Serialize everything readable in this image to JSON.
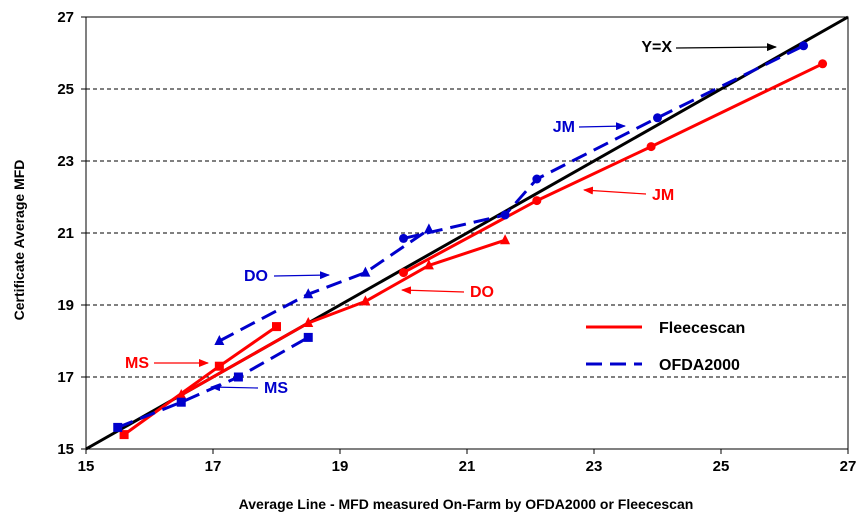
{
  "chart_data": {
    "type": "line",
    "title": "",
    "xlabel": "Average Line - MFD measured On-Farm by OFDA2000 or Fleecescan",
    "ylabel": "Certificate Average MFD",
    "xlim": [
      15,
      27
    ],
    "ylim": [
      15,
      27
    ],
    "x_ticks": [
      "15",
      "17",
      "19",
      "21",
      "23",
      "25",
      "27"
    ],
    "y_ticks": [
      "15",
      "17",
      "19",
      "21",
      "23",
      "25",
      "27"
    ],
    "grid": "horizontal dashed",
    "legend_position": "right-center",
    "colors": {
      "fleecescan": "#ff0000",
      "ofda2000": "#0000cc",
      "identity": "#000000"
    },
    "series": [
      {
        "name": "Fleecescan",
        "style": "solid",
        "segments": [
          {
            "group": "MS",
            "marker": "square",
            "points": [
              [
                15.6,
                15.4
              ],
              [
                17.1,
                17.3
              ],
              [
                18.0,
                18.4
              ]
            ]
          },
          {
            "group": "DO",
            "marker": "triangle",
            "points": [
              [
                16.5,
                16.5
              ],
              [
                18.5,
                18.5
              ],
              [
                19.4,
                19.1
              ],
              [
                20.4,
                20.1
              ],
              [
                21.6,
                20.8
              ]
            ]
          },
          {
            "group": "JM",
            "marker": "circle",
            "points": [
              [
                20.0,
                19.9
              ],
              [
                22.1,
                21.9
              ],
              [
                23.9,
                23.4
              ],
              [
                26.6,
                25.7
              ]
            ]
          }
        ]
      },
      {
        "name": "OFDA2000",
        "style": "dashed",
        "segments": [
          {
            "group": "MS",
            "marker": "square",
            "points": [
              [
                15.5,
                15.6
              ],
              [
                16.5,
                16.3
              ],
              [
                17.4,
                17.0
              ],
              [
                18.5,
                18.1
              ]
            ]
          },
          {
            "group": "DO",
            "marker": "triangle",
            "points": [
              [
                17.1,
                18.0
              ],
              [
                18.5,
                19.3
              ],
              [
                19.4,
                19.9
              ],
              [
                20.4,
                21.1
              ]
            ]
          },
          {
            "group": "JM",
            "marker": "circle",
            "points": [
              [
                20.0,
                20.85
              ],
              [
                21.6,
                21.5
              ],
              [
                22.1,
                22.5
              ],
              [
                24.0,
                24.2
              ],
              [
                26.3,
                26.2
              ]
            ]
          }
        ]
      }
    ],
    "identity_line": {
      "label": "Y=X",
      "points": [
        [
          15,
          15
        ],
        [
          27,
          27
        ]
      ]
    },
    "annotations": [
      {
        "text": "Y=X",
        "color": "#000000"
      },
      {
        "text": "JM",
        "color": "#0000cc"
      },
      {
        "text": "JM",
        "color": "#ff0000"
      },
      {
        "text": "DO",
        "color": "#0000cc"
      },
      {
        "text": "DO",
        "color": "#ff0000"
      },
      {
        "text": "MS",
        "color": "#ff0000"
      },
      {
        "text": "MS",
        "color": "#0000cc"
      }
    ]
  }
}
